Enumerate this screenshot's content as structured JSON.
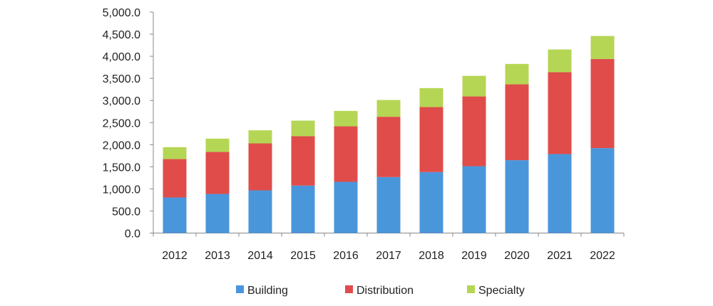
{
  "chart_data": {
    "type": "bar",
    "stacked": true,
    "title": "",
    "xlabel": "",
    "ylabel": "",
    "ylim": [
      0,
      5000
    ],
    "yticks": [
      "0.0",
      "500.0",
      "1,000.0",
      "1,500.0",
      "2,000.0",
      "2,500.0",
      "3,000.0",
      "3,500.0",
      "4,000.0",
      "4,500.0",
      "5,000.0"
    ],
    "ytick_values": [
      0,
      500,
      1000,
      1500,
      2000,
      2500,
      3000,
      3500,
      4000,
      4500,
      5000
    ],
    "grid": false,
    "legend_position": "bottom",
    "categories": [
      "2012",
      "2013",
      "2014",
      "2015",
      "2016",
      "2017",
      "2018",
      "2019",
      "2020",
      "2021",
      "2022"
    ],
    "series": [
      {
        "name": "Building",
        "color": "#4a96db",
        "values": [
          805,
          885,
          966,
          1074,
          1159,
          1267,
          1380,
          1513,
          1649,
          1787,
          1922
        ]
      },
      {
        "name": "Distribution",
        "color": "#e04c4a",
        "values": [
          869,
          950,
          1063,
          1116,
          1256,
          1364,
          1470,
          1578,
          1716,
          1852,
          2018
        ]
      },
      {
        "name": "Specialty",
        "color": "#b5d654",
        "values": [
          269,
          301,
          296,
          354,
          349,
          380,
          430,
          467,
          462,
          515,
          520
        ]
      }
    ]
  }
}
